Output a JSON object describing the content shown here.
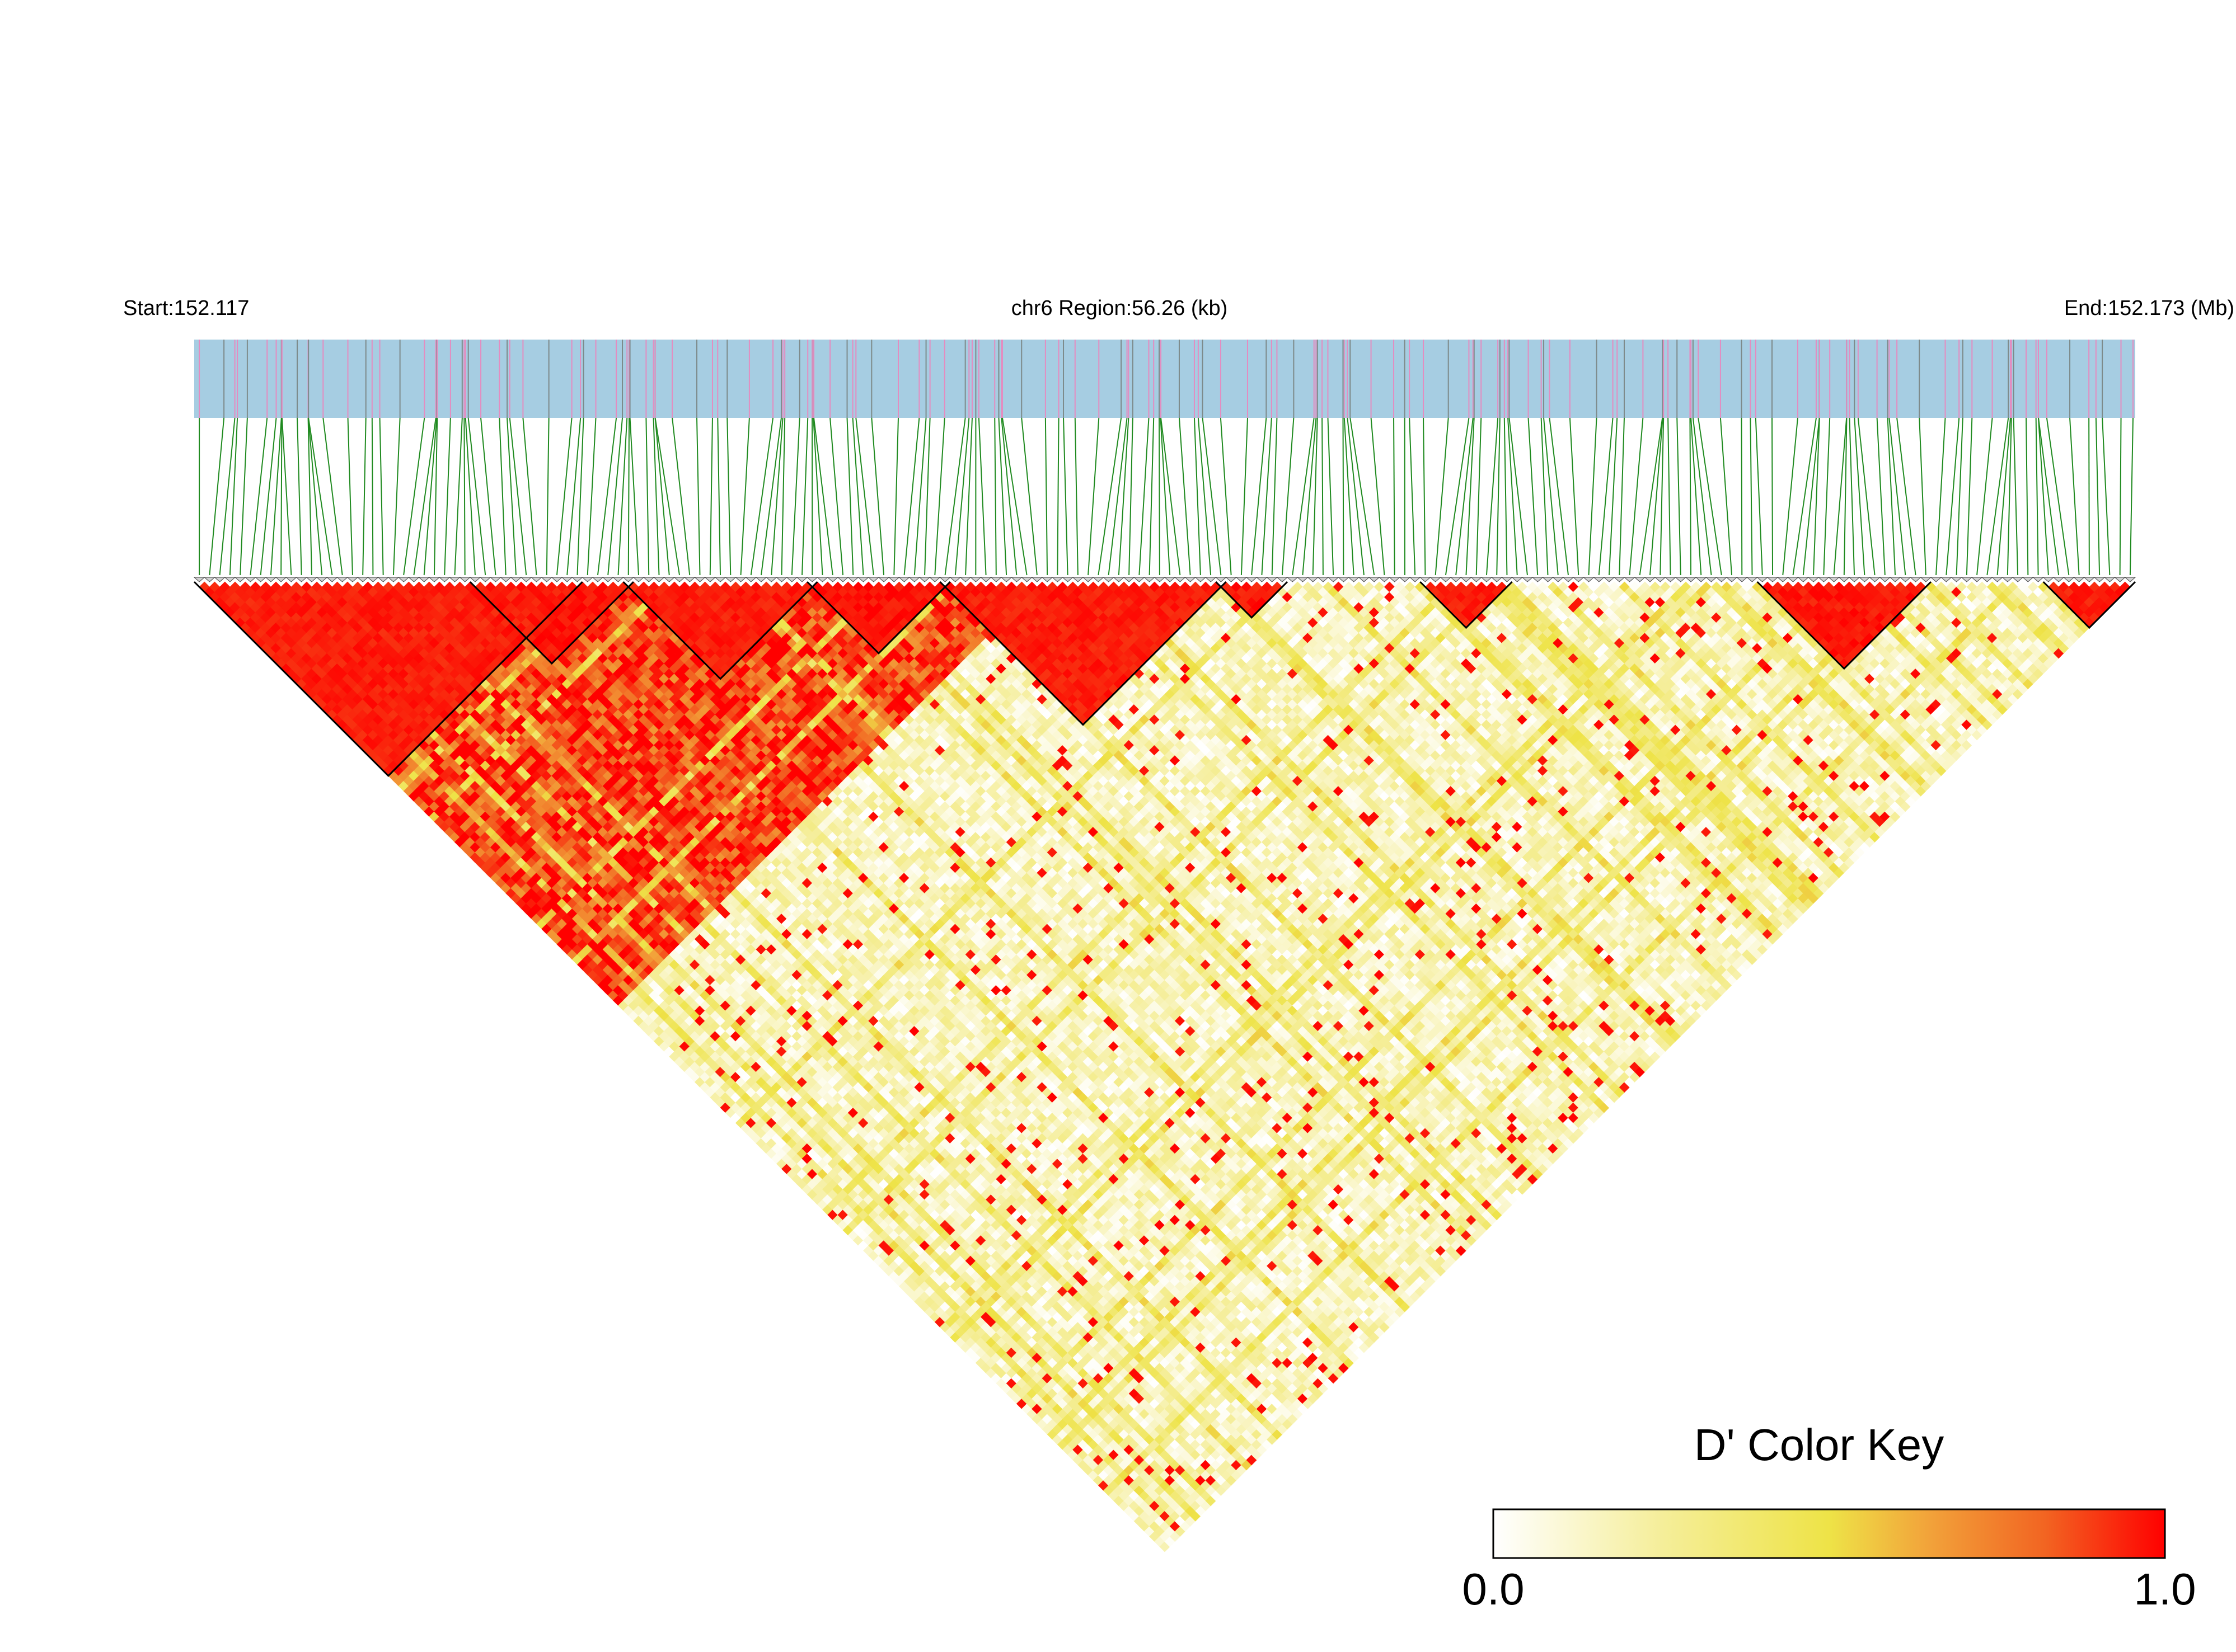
{
  "chart_data": {
    "type": "heatmap",
    "title": "",
    "header": {
      "start_label": "Start:152.117",
      "region_label": "chr6 Region:56.26 (kb)",
      "end_label": "End:152.173 (Mb)"
    },
    "region": {
      "chromosome": "chr6",
      "start_mb": 152.117,
      "end_mb": 152.173,
      "span_kb": 56.26
    },
    "snp_count": 190,
    "snp_positions_note": "SNP marks spread across region; pink = highlighted SNPs, gray = others",
    "ld_pattern": {
      "metric": "D'",
      "high_ld_blocks": [
        {
          "start_index": 0,
          "end_index": 37,
          "d_prime_approx": 0.95
        },
        {
          "start_index": 27,
          "end_index": 42,
          "d_prime_approx": 0.97
        },
        {
          "start_index": 42,
          "end_index": 60,
          "d_prime_approx": 0.95
        },
        {
          "start_index": 60,
          "end_index": 73,
          "d_prime_approx": 0.97
        },
        {
          "start_index": 73,
          "end_index": 100,
          "d_prime_approx": 0.95
        },
        {
          "start_index": 100,
          "end_index": 106,
          "d_prime_approx": 0.96
        },
        {
          "start_index": 120,
          "end_index": 128,
          "d_prime_approx": 0.95
        },
        {
          "start_index": 153,
          "end_index": 169,
          "d_prime_approx": 0.96
        },
        {
          "start_index": 181,
          "end_index": 189,
          "d_prime_approx": 0.95
        }
      ],
      "left_region_d_prime": 0.85,
      "right_region_d_prime": 0.15
    },
    "color_key": {
      "title": "D' Color Key",
      "min_label": "0.0",
      "max_label": "1.0",
      "min": 0.0,
      "max": 1.0,
      "stops": [
        "#ffffff",
        "#f5ee9a",
        "#eee347",
        "#f2a23a",
        "#f26522",
        "#ff0000"
      ]
    },
    "colors": {
      "snp_bar": "#a6cde2",
      "snp_tick_pink": "#e48cc0",
      "snp_tick_gray": "#7d8a8a",
      "connector": "#1f8a1f",
      "block_outline": "#000000"
    }
  }
}
